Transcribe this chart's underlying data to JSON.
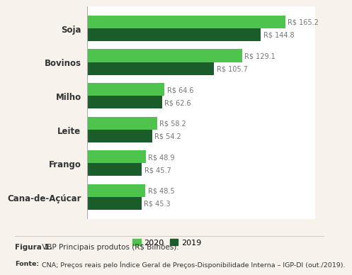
{
  "categories": [
    "Cana-de-Açúcar",
    "Frango",
    "Leite",
    "Milho",
    "Bovinos",
    "Soja"
  ],
  "values_2020": [
    48.5,
    48.9,
    58.2,
    64.6,
    129.1,
    165.2
  ],
  "values_2019": [
    45.3,
    45.7,
    54.2,
    62.6,
    105.7,
    144.8
  ],
  "color_2020": "#4ec34e",
  "color_2019": "#1a5c2a",
  "label_2020": "2020",
  "label_2019": "2019",
  "bg_color": "#ffffff",
  "fig_bg_color": "#f7f3ec",
  "bar_height": 0.38,
  "xlim": [
    0,
    190
  ],
  "label_fontsize": 7.0,
  "category_fontsize": 8.5,
  "figure_caption_bold": "Figura 1.",
  "figure_caption_rest": " VBP Principais produtos (R$ Bilhões).",
  "figure_source_bold": "Fonte:",
  "figure_source_rest": " CNA; Preços reais pelo Índice Geral de Preços-Disponibilidade Interna – IGP-DI (out./2019)."
}
